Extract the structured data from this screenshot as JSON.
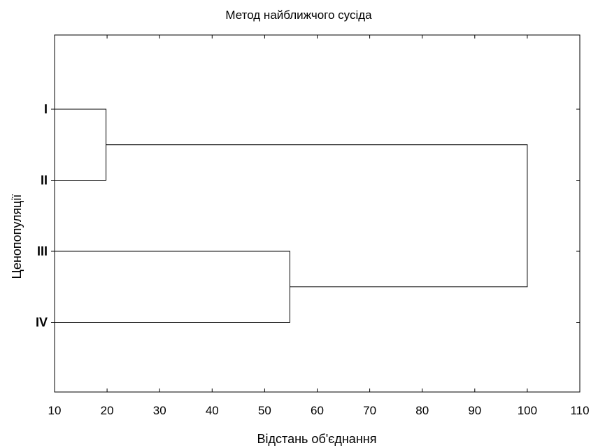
{
  "chart_data": {
    "type": "dendrogram",
    "title": "Метод найближчого сусіда",
    "xlabel": "Відстань об'єднання",
    "ylabel": "Ценопопуляції",
    "xlim": [
      10,
      110
    ],
    "xticks": [
      "10",
      "20",
      "30",
      "40",
      "50",
      "60",
      "70",
      "80",
      "90",
      "100",
      "110"
    ],
    "leaves": [
      "I",
      "II",
      "III",
      "IV"
    ],
    "merges": [
      {
        "left": "I",
        "right": "II",
        "distance": 19.8
      },
      {
        "left": "III",
        "right": "IV",
        "distance": 54.8
      },
      {
        "left": "I+II",
        "right": "III+IV",
        "distance": 100
      }
    ]
  }
}
